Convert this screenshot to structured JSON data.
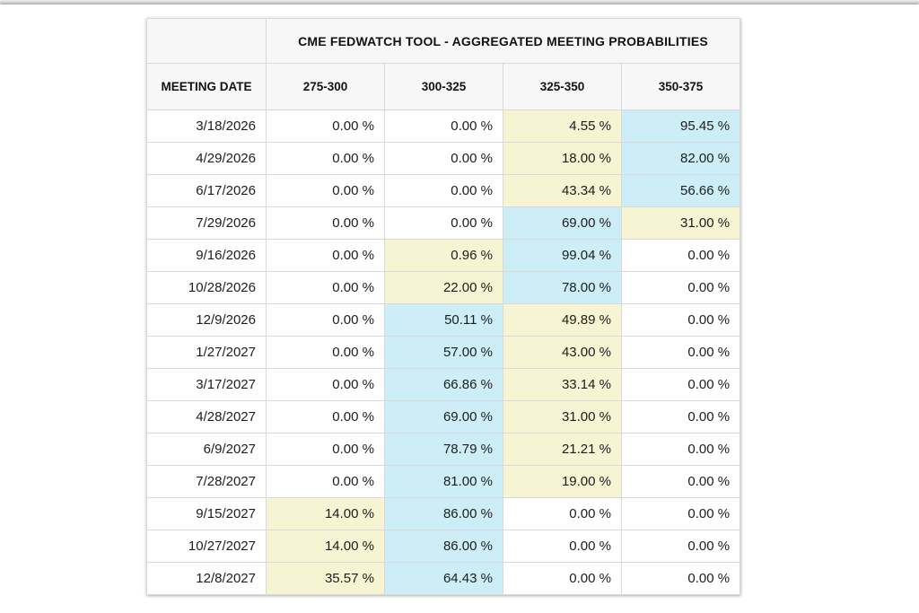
{
  "table": {
    "title": "CME FEDWATCH TOOL - AGGREGATED MEETING PROBABILITIES",
    "date_header": "MEETING DATE",
    "range_headers": [
      "275-300",
      "300-325",
      "325-350",
      "350-375"
    ],
    "rows": [
      {
        "date": "3/18/2026",
        "values": [
          "0.00 %",
          "0.00 %",
          "4.55 %",
          "95.45 %"
        ],
        "highlights": [
          "",
          "",
          "yellow",
          "blue"
        ]
      },
      {
        "date": "4/29/2026",
        "values": [
          "0.00 %",
          "0.00 %",
          "18.00 %",
          "82.00 %"
        ],
        "highlights": [
          "",
          "",
          "yellow",
          "blue"
        ]
      },
      {
        "date": "6/17/2026",
        "values": [
          "0.00 %",
          "0.00 %",
          "43.34 %",
          "56.66 %"
        ],
        "highlights": [
          "",
          "",
          "yellow",
          "blue"
        ]
      },
      {
        "date": "7/29/2026",
        "values": [
          "0.00 %",
          "0.00 %",
          "69.00 %",
          "31.00 %"
        ],
        "highlights": [
          "",
          "",
          "blue",
          "yellow"
        ]
      },
      {
        "date": "9/16/2026",
        "values": [
          "0.00 %",
          "0.96 %",
          "99.04 %",
          "0.00 %"
        ],
        "highlights": [
          "",
          "yellow",
          "blue",
          ""
        ]
      },
      {
        "date": "10/28/2026",
        "values": [
          "0.00 %",
          "22.00 %",
          "78.00 %",
          "0.00 %"
        ],
        "highlights": [
          "",
          "yellow",
          "blue",
          ""
        ]
      },
      {
        "date": "12/9/2026",
        "values": [
          "0.00 %",
          "50.11 %",
          "49.89 %",
          "0.00 %"
        ],
        "highlights": [
          "",
          "blue",
          "yellow",
          ""
        ]
      },
      {
        "date": "1/27/2027",
        "values": [
          "0.00 %",
          "57.00 %",
          "43.00 %",
          "0.00 %"
        ],
        "highlights": [
          "",
          "blue",
          "yellow",
          ""
        ]
      },
      {
        "date": "3/17/2027",
        "values": [
          "0.00 %",
          "66.86 %",
          "33.14 %",
          "0.00 %"
        ],
        "highlights": [
          "",
          "blue",
          "yellow",
          ""
        ]
      },
      {
        "date": "4/28/2027",
        "values": [
          "0.00 %",
          "69.00 %",
          "31.00 %",
          "0.00 %"
        ],
        "highlights": [
          "",
          "blue",
          "yellow",
          ""
        ]
      },
      {
        "date": "6/9/2027",
        "values": [
          "0.00 %",
          "78.79 %",
          "21.21 %",
          "0.00 %"
        ],
        "highlights": [
          "",
          "blue",
          "yellow",
          ""
        ]
      },
      {
        "date": "7/28/2027",
        "values": [
          "0.00 %",
          "81.00 %",
          "19.00 %",
          "0.00 %"
        ],
        "highlights": [
          "",
          "blue",
          "yellow",
          ""
        ]
      },
      {
        "date": "9/15/2027",
        "values": [
          "14.00 %",
          "86.00 %",
          "0.00 %",
          "0.00 %"
        ],
        "highlights": [
          "yellow",
          "blue",
          "",
          ""
        ]
      },
      {
        "date": "10/27/2027",
        "values": [
          "14.00 %",
          "86.00 %",
          "0.00 %",
          "0.00 %"
        ],
        "highlights": [
          "yellow",
          "blue",
          "",
          ""
        ]
      },
      {
        "date": "12/8/2027",
        "values": [
          "35.57 %",
          "64.43 %",
          "0.00 %",
          "0.00 %"
        ],
        "highlights": [
          "yellow",
          "blue",
          "",
          ""
        ]
      }
    ],
    "colors": {
      "highlight_yellow": "#f6f4d3",
      "highlight_blue": "#cdeef7",
      "header_bg": "#f7f7f7",
      "border": "#d9d9d9"
    }
  },
  "chart_data": {
    "type": "table",
    "title": "CME FEDWATCH TOOL - AGGREGATED MEETING PROBABILITIES",
    "row_label": "MEETING DATE",
    "columns": [
      "275-300",
      "300-325",
      "325-350",
      "350-375"
    ],
    "units": "%",
    "rows": [
      {
        "date": "3/18/2026",
        "values": [
          0.0,
          0.0,
          4.55,
          95.45
        ]
      },
      {
        "date": "4/29/2026",
        "values": [
          0.0,
          0.0,
          18.0,
          82.0
        ]
      },
      {
        "date": "6/17/2026",
        "values": [
          0.0,
          0.0,
          43.34,
          56.66
        ]
      },
      {
        "date": "7/29/2026",
        "values": [
          0.0,
          0.0,
          69.0,
          31.0
        ]
      },
      {
        "date": "9/16/2026",
        "values": [
          0.0,
          0.96,
          99.04,
          0.0
        ]
      },
      {
        "date": "10/28/2026",
        "values": [
          0.0,
          22.0,
          78.0,
          0.0
        ]
      },
      {
        "date": "12/9/2026",
        "values": [
          0.0,
          50.11,
          49.89,
          0.0
        ]
      },
      {
        "date": "1/27/2027",
        "values": [
          0.0,
          57.0,
          43.0,
          0.0
        ]
      },
      {
        "date": "3/17/2027",
        "values": [
          0.0,
          66.86,
          33.14,
          0.0
        ]
      },
      {
        "date": "4/28/2027",
        "values": [
          0.0,
          69.0,
          31.0,
          0.0
        ]
      },
      {
        "date": "6/9/2027",
        "values": [
          0.0,
          78.79,
          21.21,
          0.0
        ]
      },
      {
        "date": "7/28/2027",
        "values": [
          0.0,
          81.0,
          19.0,
          0.0
        ]
      },
      {
        "date": "9/15/2027",
        "values": [
          14.0,
          86.0,
          0.0,
          0.0
        ]
      },
      {
        "date": "10/27/2027",
        "values": [
          14.0,
          86.0,
          0.0,
          0.0
        ]
      },
      {
        "date": "12/8/2027",
        "values": [
          35.57,
          64.43,
          0.0,
          0.0
        ]
      }
    ]
  }
}
